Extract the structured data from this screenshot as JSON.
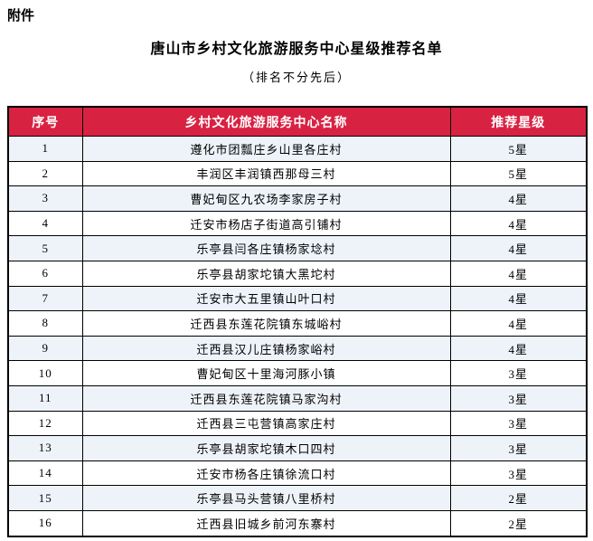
{
  "page": {
    "attachment_label": "附件",
    "title": "唐山市乡村文化旅游服务中心星级推荐名单",
    "subtitle": "（排名不分先后）"
  },
  "table": {
    "headers": [
      "序号",
      "乡村文化旅游服务中心名称",
      "推荐星级"
    ],
    "rows": [
      {
        "no": "1",
        "name": "遵化市团瓢庄乡山里各庄村",
        "star": "5星"
      },
      {
        "no": "2",
        "name": "丰润区丰润镇西那母三村",
        "star": "5星"
      },
      {
        "no": "3",
        "name": "曹妃甸区九农场李家房子村",
        "star": "4星"
      },
      {
        "no": "4",
        "name": "迁安市杨店子街道高引铺村",
        "star": "4星"
      },
      {
        "no": "5",
        "name": "乐亭县闫各庄镇杨家埝村",
        "star": "4星"
      },
      {
        "no": "6",
        "name": "乐亭县胡家坨镇大黑坨村",
        "star": "4星"
      },
      {
        "no": "7",
        "name": "迁安市大五里镇山叶口村",
        "star": "4星"
      },
      {
        "no": "8",
        "name": "迁西县东莲花院镇东城峪村",
        "star": "4星"
      },
      {
        "no": "9",
        "name": "迁西县汉儿庄镇杨家峪村",
        "star": "4星"
      },
      {
        "no": "10",
        "name": "曹妃甸区十里海河豚小镇",
        "star": "3星"
      },
      {
        "no": "11",
        "name": "迁西县东莲花院镇马家沟村",
        "star": "3星"
      },
      {
        "no": "12",
        "name": "迁西县三屯营镇高家庄村",
        "star": "3星"
      },
      {
        "no": "13",
        "name": "乐亭县胡家坨镇木口四村",
        "star": "3星"
      },
      {
        "no": "14",
        "name": "迁安市杨各庄镇徐流口村",
        "star": "3星"
      },
      {
        "no": "15",
        "name": "乐亭县马头营镇八里桥村",
        "star": "2星"
      },
      {
        "no": "16",
        "name": "迁西县旧城乡前河东寨村",
        "star": "2星"
      }
    ]
  },
  "colors": {
    "header_bg": "#d82242",
    "header_text": "#ffffff",
    "row_alt_bg": "#eef3fa",
    "row_bg": "#ffffff",
    "border": "#000000"
  }
}
